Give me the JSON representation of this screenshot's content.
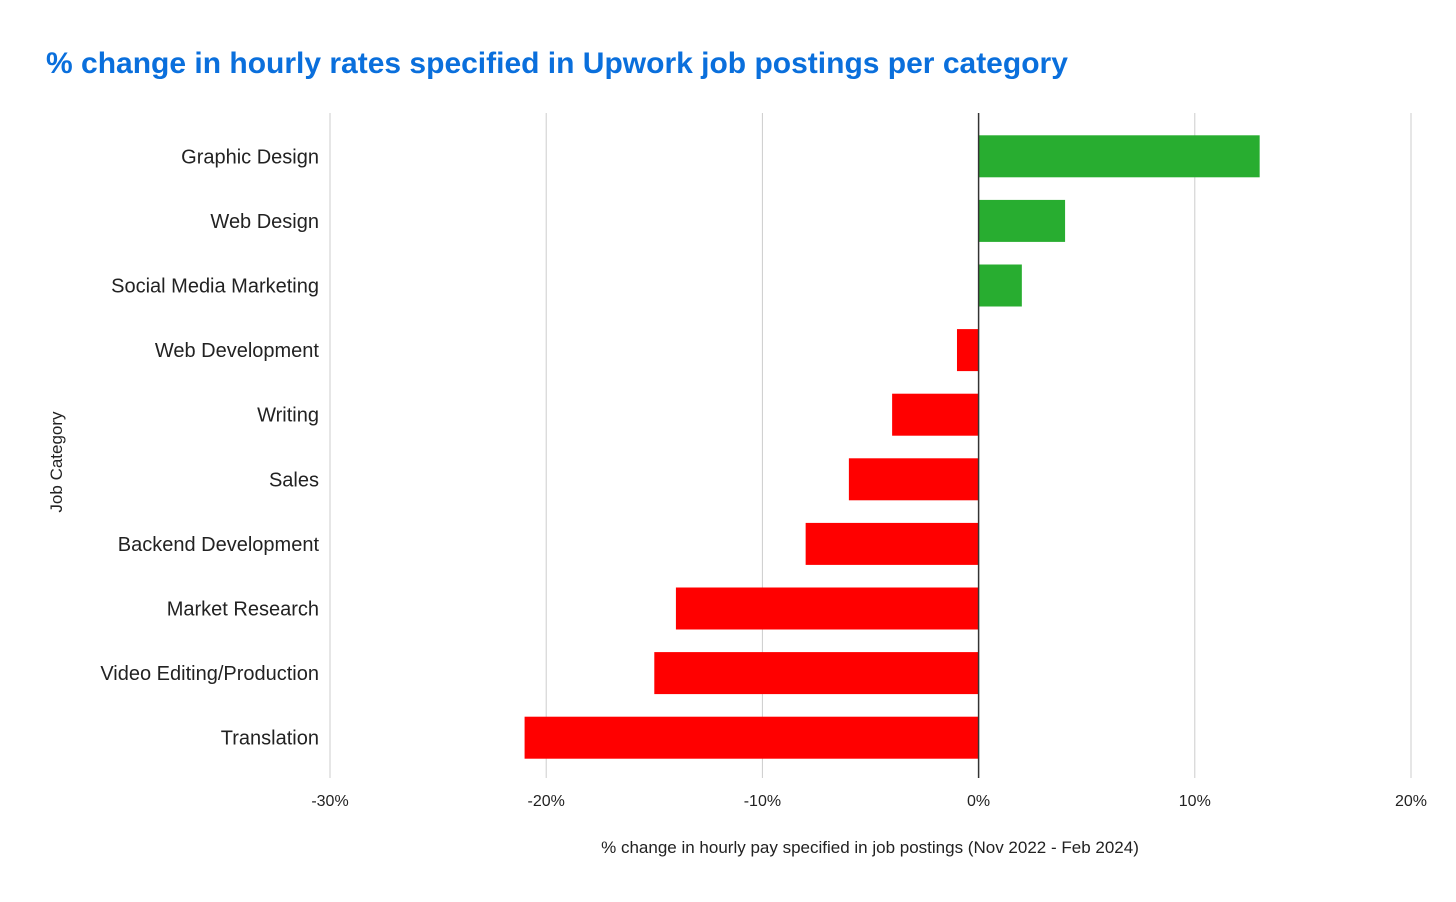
{
  "colors": {
    "title": "#0a6fdc",
    "positive": "#28ad30",
    "negative": "#ff0000",
    "grid": "#cccccc",
    "zero_line": "#333333",
    "text": "#222222"
  },
  "chart_data": {
    "type": "bar",
    "orientation": "horizontal",
    "title": "% change in hourly rates specified in Upwork job postings per category",
    "xlabel": "% change in hourly pay specified in job postings (Nov 2022 - Feb 2024)",
    "ylabel": "Job Category",
    "xlim": [
      -30,
      20
    ],
    "xticks": [
      -30,
      -20,
      -10,
      0,
      10,
      20
    ],
    "xtick_labels": [
      "-30%",
      "-20%",
      "-10%",
      "0%",
      "10%",
      "20%"
    ],
    "grid": true,
    "legend": "none",
    "categories": [
      "Graphic Design",
      "Web Design",
      "Social Media Marketing",
      "Web Development",
      "Writing",
      "Sales",
      "Backend Development",
      "Market Research",
      "Video Editing/Production",
      "Translation"
    ],
    "values": [
      13,
      4,
      2,
      -1,
      -4,
      -6,
      -8,
      -14,
      -15,
      -21
    ]
  }
}
